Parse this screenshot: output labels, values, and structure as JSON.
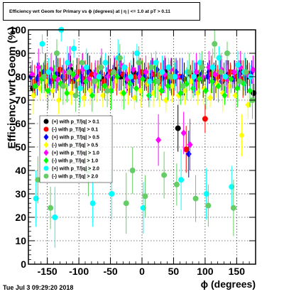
{
  "title": "Efficiency wrt Geom for Primary vs ϕ (degrees) at | η | <= 1.0 at pT > 0.11",
  "footer": "Tue Jul  3 09:29:20 2018",
  "chart_data": {
    "type": "scatter",
    "title": "Efficiency wrt Geom for Primary vs ϕ (degrees) at | η | <= 1.0 at pT > 0.11",
    "xlabel": "ϕ (degrees)",
    "ylabel": "Efficiency wrt Geom (%)",
    "xlim": [
      -180,
      180
    ],
    "ylim": [
      0,
      100
    ],
    "xticks": [
      -150,
      -100,
      -50,
      0,
      50,
      100,
      150
    ],
    "yticks": [
      0,
      10,
      20,
      30,
      40,
      50,
      60,
      70,
      80,
      90,
      100
    ],
    "grid": true,
    "legend_position": "left-middle",
    "legend": [
      "(+) with p_T/|q| > 0.1",
      "(-) with p_T/|q| > 0.1",
      "(+) with p_T/|q| > 0.5",
      "(-) with p_T/|q| > 0.5",
      "(+) with p_T/|q| > 1.0",
      "(-) with p_T/|q| > 1.0",
      "(+) with p_T/|q| > 2.0",
      "(-) with p_T/|q| > 2.0"
    ],
    "series": [
      {
        "name": "(+) with p_T/|q| > 0.1",
        "color": "#000000",
        "marker": "circle",
        "x": [
          -173,
          -163,
          -153,
          -143,
          -133,
          -123,
          -113,
          -103,
          -93,
          -83,
          -73,
          -63,
          -53,
          -43,
          -33,
          -23,
          -13,
          -3,
          7,
          17,
          27,
          37,
          47,
          57,
          67,
          77,
          87,
          97,
          107,
          117,
          127,
          137,
          147,
          157,
          167,
          177
        ],
        "y": [
          75,
          80,
          82,
          78,
          81,
          79,
          83,
          80,
          78,
          82,
          80,
          79,
          81,
          83,
          80,
          78,
          82,
          80,
          79,
          81,
          78,
          82,
          80,
          58,
          79,
          81,
          80,
          79,
          82,
          80,
          78,
          81,
          79,
          82,
          80,
          73
        ]
      },
      {
        "name": "(-) with p_T/|q| > 0.1",
        "color": "#ff0000",
        "marker": "circle",
        "x": [
          -170,
          -160,
          -150,
          -140,
          -130,
          -120,
          -110,
          -100,
          -90,
          -80,
          -70,
          -60,
          -50,
          -40,
          -30,
          -20,
          -10,
          0,
          10,
          20,
          30,
          40,
          50,
          60,
          70,
          80,
          90,
          100,
          110,
          120,
          130,
          140,
          150,
          160,
          170
        ],
        "y": [
          78,
          81,
          80,
          79,
          83,
          80,
          78,
          82,
          79,
          81,
          80,
          78,
          82,
          80,
          81,
          79,
          80,
          82,
          78,
          81,
          79,
          80,
          78,
          80,
          49,
          80,
          79,
          62,
          81,
          80,
          79,
          82,
          80,
          79,
          81
        ]
      },
      {
        "name": "(+) with p_T/|q| > 0.5",
        "color": "#0000ff",
        "marker": "diamond",
        "x": [
          -176,
          -166,
          -156,
          -146,
          -136,
          -126,
          -116,
          -106,
          -96,
          -86,
          -76,
          -66,
          -56,
          -46,
          -36,
          -26,
          -16,
          -6,
          4,
          14,
          24,
          34,
          44,
          54,
          64,
          74,
          84,
          94,
          104,
          114,
          124,
          134,
          144,
          154,
          164,
          174
        ],
        "y": [
          80,
          79,
          82,
          78,
          81,
          80,
          83,
          79,
          80,
          82,
          78,
          81,
          80,
          79,
          82,
          80,
          78,
          81,
          80,
          79,
          83,
          80,
          78,
          82,
          80,
          47,
          79,
          81,
          80,
          78,
          82,
          80,
          79,
          81,
          80,
          82
        ]
      },
      {
        "name": "(-) with p_T/|q| > 0.5",
        "color": "#ffff00",
        "marker": "diamond",
        "x": [
          -172,
          -162,
          -152,
          -142,
          -132,
          -122,
          -112,
          -102,
          -92,
          -82,
          -72,
          -62,
          -52,
          -42,
          -32,
          -22,
          -12,
          -2,
          8,
          18,
          28,
          38,
          48,
          58,
          68,
          78,
          88,
          98,
          108,
          118,
          128,
          138,
          148,
          158,
          168
        ],
        "y": [
          72,
          75,
          78,
          74,
          70,
          76,
          73,
          79,
          71,
          74,
          77,
          72,
          75,
          78,
          73,
          76,
          71,
          74,
          77,
          73,
          75,
          70,
          76,
          72,
          74,
          78,
          73,
          75,
          71,
          77,
          73,
          76,
          72,
          55,
          68
        ]
      },
      {
        "name": "(+) with p_T/|q| > 1.0",
        "color": "#ff00ff",
        "marker": "diamond",
        "x": [
          -174,
          -164,
          -154,
          -144,
          -134,
          -124,
          -114,
          -104,
          -94,
          -84,
          -74,
          -64,
          -54,
          -44,
          -34,
          -24,
          -14,
          -4,
          6,
          16,
          26,
          36,
          46,
          56,
          66,
          76,
          86,
          96,
          106,
          116,
          126,
          136,
          146,
          156,
          166,
          176
        ],
        "y": [
          81,
          84,
          80,
          83,
          79,
          82,
          85,
          80,
          83,
          79,
          81,
          84,
          80,
          82,
          85,
          79,
          83,
          80,
          82,
          84,
          53,
          81,
          83,
          80,
          56,
          51,
          82,
          80,
          84,
          81,
          83,
          79,
          82,
          84,
          81,
          83
        ]
      },
      {
        "name": "(-) with p_T/|q| > 1.0",
        "color": "#00ff00",
        "marker": "diamond",
        "x": [
          -169,
          -159,
          -149,
          -139,
          -129,
          -119,
          -109,
          -99,
          -89,
          -79,
          -69,
          -59,
          -49,
          -39,
          -29,
          -19,
          -9,
          1,
          11,
          21,
          31,
          41,
          51,
          61,
          71,
          81,
          91,
          101,
          111,
          121,
          131,
          141,
          151,
          161,
          171
        ],
        "y": [
          76,
          79,
          74,
          80,
          77,
          73,
          81,
          75,
          78,
          72,
          79,
          76,
          74,
          80,
          73,
          77,
          75,
          79,
          72,
          78,
          74,
          76,
          80,
          73,
          77,
          75,
          79,
          74,
          78,
          76,
          72,
          79,
          75,
          77,
          74
        ]
      },
      {
        "name": "(+) with p_T/|q| > 2.0",
        "color": "#00ffff",
        "marker": "circle",
        "x": [
          -168,
          -158,
          -148,
          -138,
          -128,
          -118,
          -108,
          -98,
          -88,
          -78,
          -68,
          -58,
          -48,
          -38,
          -28,
          -18,
          -8,
          2,
          12,
          22,
          32,
          42,
          52,
          62,
          72,
          82,
          92,
          102,
          112,
          122,
          132,
          142,
          152,
          162,
          172
        ],
        "y": [
          28,
          94,
          82,
          20,
          100,
          86,
          92,
          75,
          84,
          26,
          80,
          86,
          30,
          88,
          84,
          80,
          90,
          24,
          78,
          86,
          82,
          84,
          80,
          36,
          82,
          80,
          86,
          30,
          84,
          88,
          80,
          33,
          85,
          82,
          80
        ]
      },
      {
        "name": "(-) with p_T/|q| > 2.0",
        "color": "#66cc66",
        "marker": "circle",
        "x": [
          -165,
          -155,
          -145,
          -135,
          -125,
          -115,
          -105,
          -95,
          -85,
          -75,
          -65,
          -55,
          -45,
          -35,
          -25,
          -15,
          -5,
          5,
          15,
          25,
          35,
          45,
          55,
          65,
          75,
          85,
          95,
          105,
          115,
          125,
          135,
          145,
          155,
          165,
          175
        ],
        "y": [
          36,
          80,
          24,
          90,
          76,
          82,
          72,
          86,
          40,
          78,
          84,
          74,
          82,
          88,
          26,
          40,
          86,
          29,
          84,
          78,
          38,
          80,
          34,
          76,
          82,
          28,
          84,
          25,
          94,
          82,
          90,
          24,
          78,
          82,
          70
        ]
      }
    ]
  }
}
